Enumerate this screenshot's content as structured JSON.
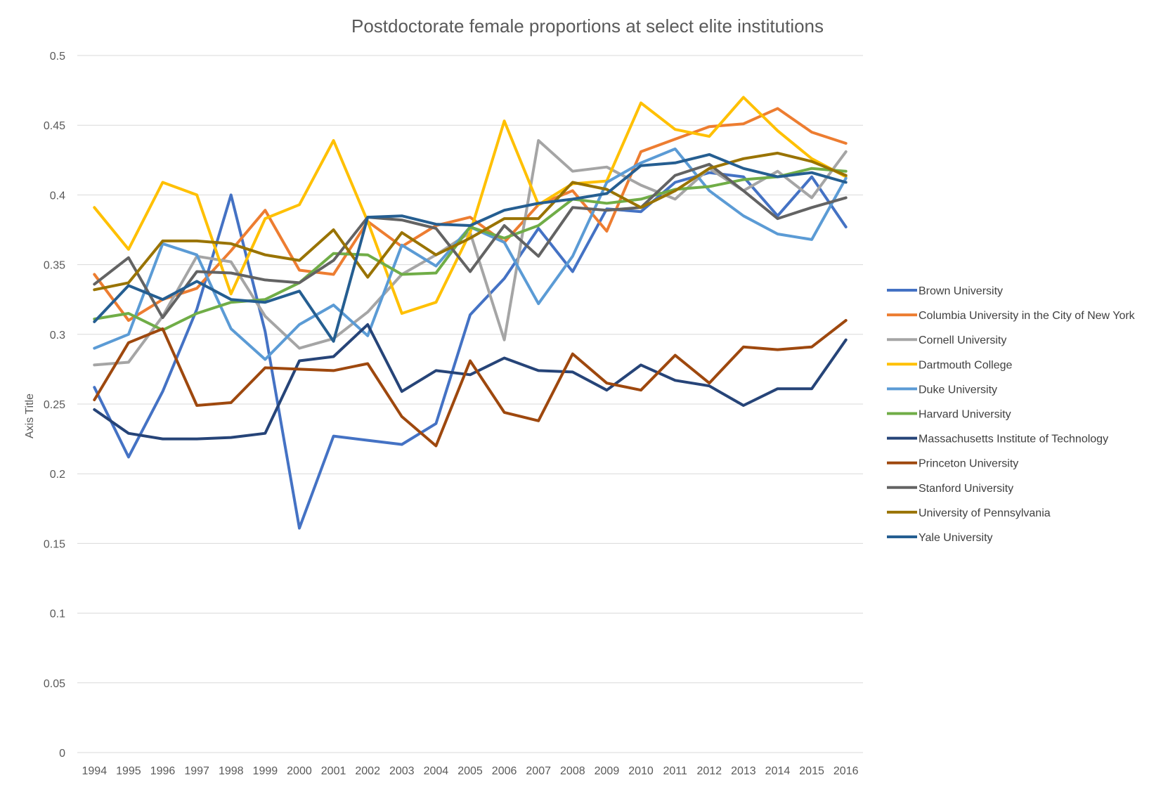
{
  "chart_data": {
    "type": "line",
    "title": "Postdoctorate female proportions at select elite institutions",
    "xlabel": "",
    "ylabel": "Axis Title",
    "ylim": [
      0,
      0.5
    ],
    "yticks": [
      "0",
      "0.05",
      "0.1",
      "0.15",
      "0.2",
      "0.25",
      "0.3",
      "0.35",
      "0.4",
      "0.45",
      "0.5"
    ],
    "grid": true,
    "legend_position": "right",
    "categories": [
      "1994",
      "1995",
      "1996",
      "1997",
      "1998",
      "1999",
      "2000",
      "2001",
      "2002",
      "2003",
      "2004",
      "2005",
      "2006",
      "2007",
      "2008",
      "2009",
      "2010",
      "2011",
      "2012",
      "2013",
      "2014",
      "2015",
      "2016"
    ],
    "series": [
      {
        "name": "Brown University",
        "color": "#4472c4",
        "values": [
          0.262,
          0.212,
          0.259,
          0.318,
          0.4,
          0.302,
          0.161,
          0.227,
          0.224,
          0.221,
          0.236,
          0.314,
          0.34,
          0.376,
          0.345,
          0.39,
          0.388,
          0.409,
          0.416,
          0.413,
          0.385,
          0.413,
          0.377
        ]
      },
      {
        "name": "Columbia University in the City of New York",
        "color": "#ed7d31",
        "values": [
          0.343,
          0.31,
          0.325,
          0.333,
          0.36,
          0.389,
          0.346,
          0.343,
          0.381,
          0.363,
          0.378,
          0.384,
          0.366,
          0.393,
          0.403,
          0.374,
          0.431,
          0.44,
          0.449,
          0.451,
          0.462,
          0.445,
          0.437
        ]
      },
      {
        "name": "Cornell University",
        "color": "#a5a5a5",
        "values": [
          0.278,
          0.28,
          0.313,
          0.356,
          0.352,
          0.313,
          0.29,
          0.297,
          0.316,
          0.343,
          0.357,
          0.373,
          0.296,
          0.439,
          0.417,
          0.42,
          0.407,
          0.397,
          0.419,
          0.403,
          0.417,
          0.398,
          0.431
        ]
      },
      {
        "name": "Dartmouth College",
        "color": "#ffc000",
        "values": [
          0.391,
          0.361,
          0.409,
          0.4,
          0.329,
          0.383,
          0.393,
          0.439,
          0.381,
          0.315,
          0.323,
          0.373,
          0.453,
          0.393,
          0.408,
          0.41,
          0.466,
          0.447,
          0.442,
          0.47,
          0.446,
          0.426,
          0.413
        ]
      },
      {
        "name": "Duke University",
        "color": "#5b9bd5",
        "values": [
          0.29,
          0.3,
          0.365,
          0.357,
          0.304,
          0.282,
          0.307,
          0.321,
          0.299,
          0.364,
          0.349,
          0.377,
          0.366,
          0.322,
          0.356,
          0.409,
          0.423,
          0.433,
          0.403,
          0.385,
          0.372,
          0.368,
          0.412
        ]
      },
      {
        "name": "Harvard University",
        "color": "#70ad47",
        "values": [
          0.311,
          0.315,
          0.303,
          0.315,
          0.323,
          0.325,
          0.337,
          0.358,
          0.357,
          0.343,
          0.344,
          0.377,
          0.369,
          0.378,
          0.397,
          0.394,
          0.397,
          0.404,
          0.406,
          0.411,
          0.413,
          0.419,
          0.417
        ]
      },
      {
        "name": "Massachusetts Institute of Technology",
        "color": "#264478",
        "values": [
          0.246,
          0.229,
          0.225,
          0.225,
          0.226,
          0.229,
          0.281,
          0.284,
          0.307,
          0.259,
          0.274,
          0.271,
          0.283,
          0.274,
          0.273,
          0.26,
          0.278,
          0.267,
          0.263,
          0.249,
          0.261,
          0.261,
          0.296
        ]
      },
      {
        "name": "Princeton University",
        "color": "#9e480e",
        "values": [
          0.253,
          0.294,
          0.304,
          0.249,
          0.251,
          0.276,
          0.275,
          0.274,
          0.279,
          0.241,
          0.22,
          0.281,
          0.244,
          0.238,
          0.286,
          0.265,
          0.26,
          0.285,
          0.265,
          0.291,
          0.289,
          0.291,
          0.31
        ]
      },
      {
        "name": "Stanford University",
        "color": "#636363",
        "values": [
          0.336,
          0.355,
          0.312,
          0.345,
          0.344,
          0.339,
          0.337,
          0.353,
          0.384,
          0.382,
          0.376,
          0.345,
          0.378,
          0.356,
          0.391,
          0.389,
          0.391,
          0.414,
          0.422,
          0.403,
          0.383,
          0.391,
          0.398
        ]
      },
      {
        "name": "University of Pennsylvania",
        "color": "#997300",
        "values": [
          0.332,
          0.337,
          0.367,
          0.367,
          0.365,
          0.357,
          0.353,
          0.375,
          0.341,
          0.373,
          0.357,
          0.369,
          0.383,
          0.383,
          0.409,
          0.404,
          0.391,
          0.403,
          0.419,
          0.426,
          0.43,
          0.424,
          0.414
        ]
      },
      {
        "name": "Yale University",
        "color": "#255e91",
        "values": [
          0.309,
          0.335,
          0.325,
          0.338,
          0.325,
          0.323,
          0.331,
          0.295,
          0.384,
          0.385,
          0.379,
          0.378,
          0.389,
          0.394,
          0.397,
          0.401,
          0.421,
          0.423,
          0.429,
          0.419,
          0.413,
          0.416,
          0.409
        ]
      }
    ]
  }
}
